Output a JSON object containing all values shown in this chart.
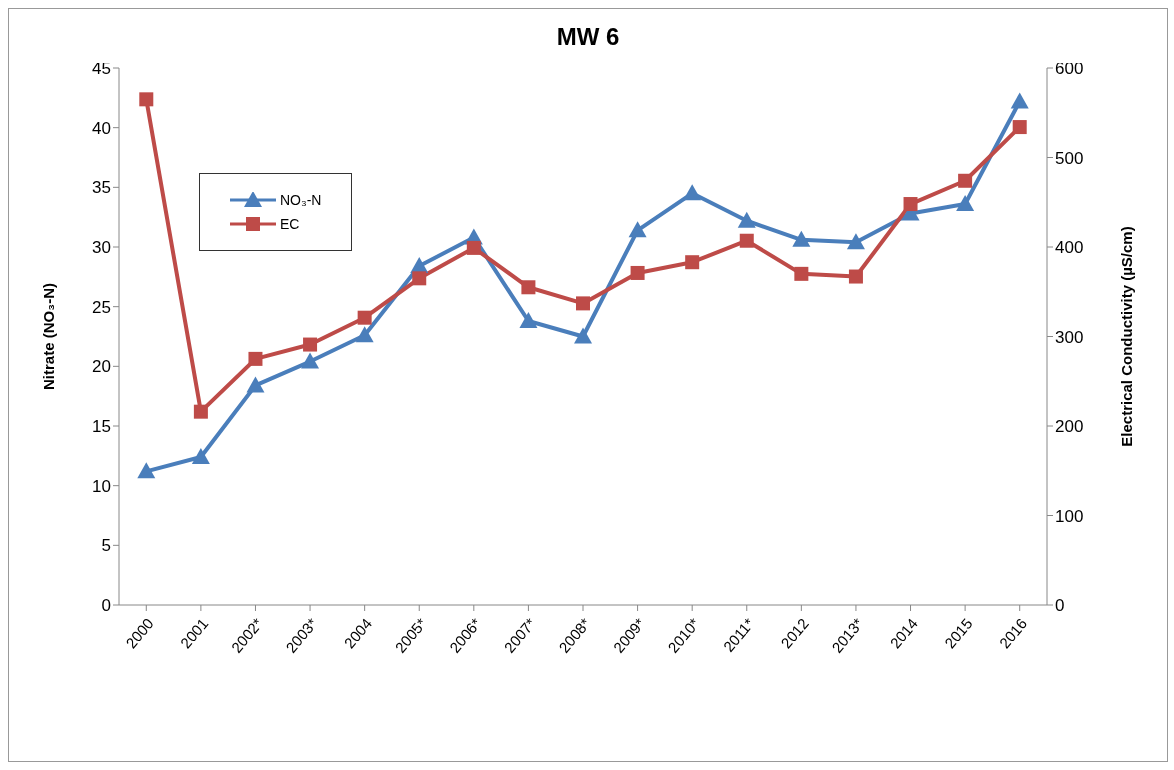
{
  "chart_data": {
    "type": "line",
    "title": "MW 6",
    "categories": [
      "2000",
      "2001",
      "2002*",
      "2003*",
      "2004",
      "2005*",
      "2006*",
      "2007*",
      "2008*",
      "2009*",
      "2010*",
      "2011*",
      "2012",
      "2013*",
      "2014",
      "2015",
      "2016"
    ],
    "series": [
      {
        "name": "NO₃-N",
        "color": "#4a7ebb",
        "marker": "triangle",
        "values": [
          11.2,
          12.4,
          18.4,
          20.4,
          22.6,
          28.4,
          30.8,
          23.8,
          22.5,
          31.4,
          34.5,
          32.2,
          30.6,
          30.4,
          32.8,
          33.6,
          42.2
        ]
      },
      {
        "name": "EC",
        "color": "#be4b48",
        "marker": "square",
        "axis": "y2",
        "values": [
          565,
          216,
          275,
          291,
          321,
          365,
          399,
          355,
          337,
          371,
          383,
          407,
          370,
          367,
          448,
          474,
          534
        ]
      }
    ],
    "ylabel": "Nitrate (NO₃-N)",
    "y2label": "Electrical Conductivity (µS/cm)",
    "ylim": [
      0,
      45
    ],
    "yticks": [
      0,
      5,
      10,
      15,
      20,
      25,
      30,
      35,
      40,
      45
    ],
    "y2lim": [
      0,
      600
    ],
    "y2ticks": [
      0,
      100,
      200,
      300,
      400,
      500,
      600
    ],
    "grid": false,
    "legend": "top left"
  }
}
